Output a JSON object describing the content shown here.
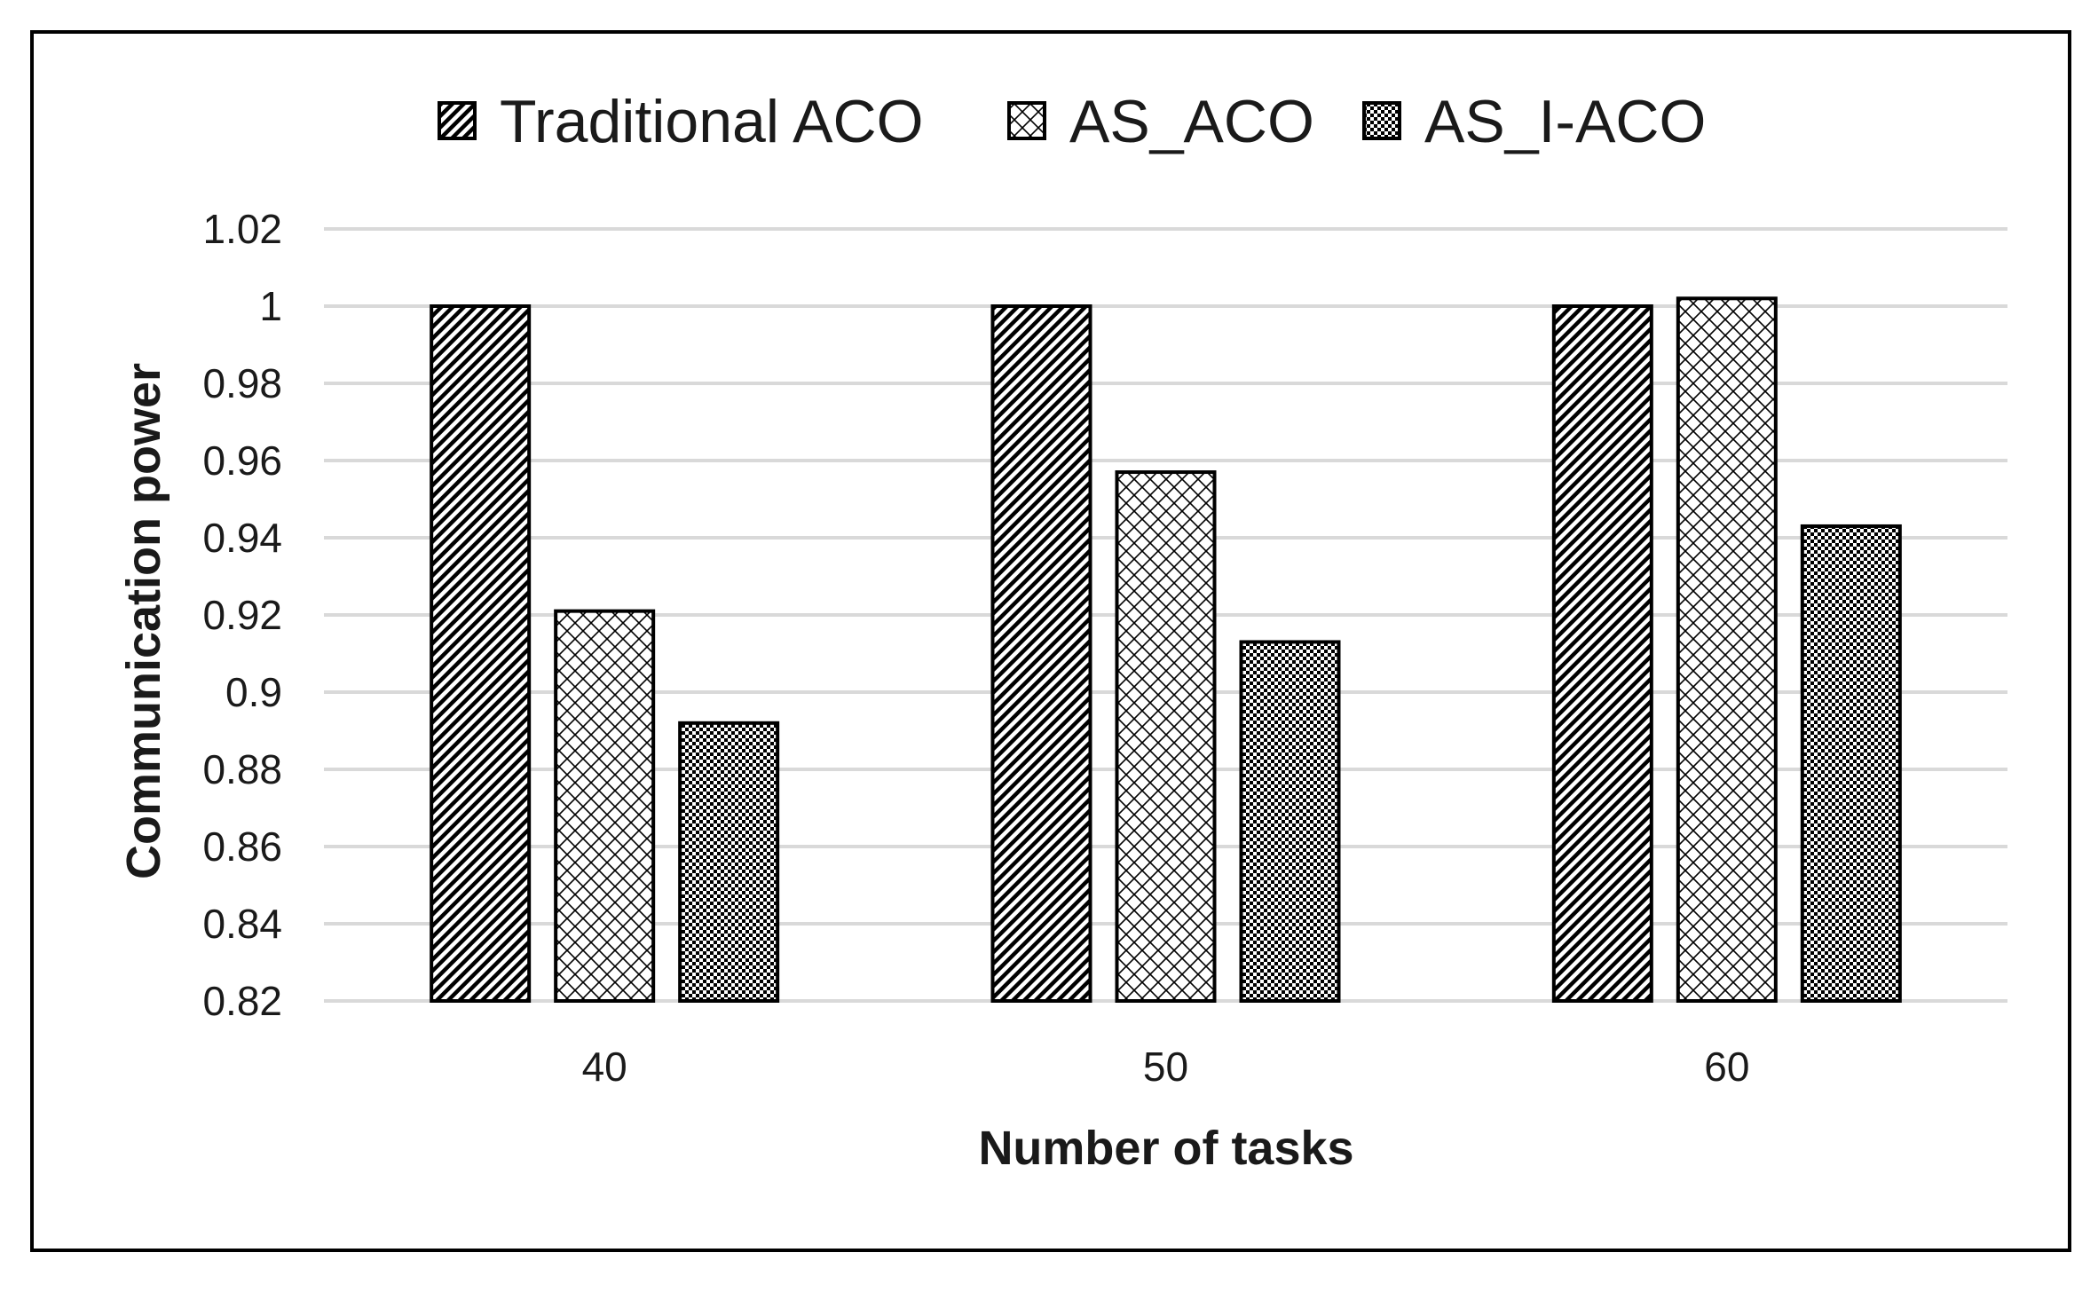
{
  "chart_data": {
    "type": "bar",
    "title": "",
    "xlabel": "Number of tasks",
    "ylabel": "Communication power",
    "categories": [
      "40",
      "50",
      "60"
    ],
    "series": [
      {
        "name": "Traditional ACO",
        "pattern": "diagonal-hatch",
        "values": [
          1.0,
          1.0,
          1.0
        ]
      },
      {
        "name": "AS_ACO",
        "pattern": "crosshatch-light",
        "values": [
          0.921,
          0.957,
          1.002
        ]
      },
      {
        "name": "AS_I-ACO",
        "pattern": "checker-dense",
        "values": [
          0.892,
          0.913,
          0.943
        ]
      }
    ],
    "ylim": [
      0.82,
      1.02
    ],
    "yticks": [
      "0.82",
      "0.84",
      "0.86",
      "0.88",
      "0.9",
      "0.92",
      "0.94",
      "0.96",
      "0.98",
      "1",
      "1.02"
    ],
    "grid": true,
    "legend_position": "top-center",
    "colors": {
      "bar_outline": "#000000",
      "gridline": "#d9d9d9",
      "frame": "#000000"
    }
  }
}
